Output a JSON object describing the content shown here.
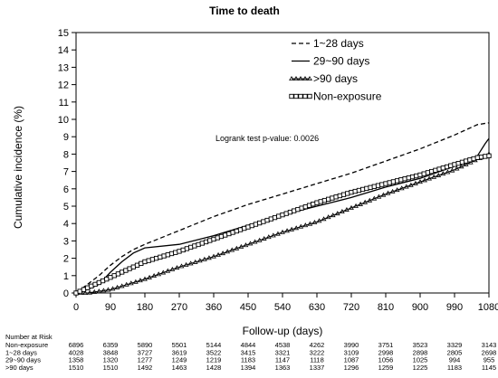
{
  "chart_data": {
    "type": "line",
    "title": "Time to death",
    "xlabel": "Follow-up  (days)",
    "ylabel": "Cumulative incidence (%)",
    "xlim": [
      0,
      1080
    ],
    "ylim": [
      0,
      15
    ],
    "x_ticks": [
      "0",
      "90",
      "180",
      "270",
      "360",
      "450",
      "540",
      "630",
      "720",
      "810",
      "900",
      "990",
      "1080"
    ],
    "y_ticks": [
      "0",
      "1",
      "2",
      "3",
      "4",
      "5",
      "6",
      "7",
      "8",
      "9",
      "10",
      "11",
      "12",
      "13",
      "14",
      "15"
    ],
    "grid": false,
    "legend_position": "top-right",
    "annotation": "Logrank test p-value: 0.0026",
    "series": [
      {
        "name": "1~28 days",
        "style": "dashed",
        "x": [
          0,
          30,
          60,
          90,
          120,
          150,
          180,
          270,
          360,
          450,
          540,
          630,
          720,
          810,
          900,
          990,
          1050,
          1080
        ],
        "y": [
          0,
          0.5,
          1.0,
          1.6,
          2.1,
          2.5,
          2.8,
          3.6,
          4.4,
          5.1,
          5.7,
          6.3,
          6.9,
          7.6,
          8.3,
          9.1,
          9.7,
          9.8
        ]
      },
      {
        "name": "29~90 days",
        "style": "solid",
        "x": [
          0,
          30,
          60,
          90,
          120,
          150,
          180,
          270,
          360,
          450,
          540,
          630,
          720,
          810,
          900,
          990,
          1050,
          1070,
          1080
        ],
        "y": [
          0,
          0.2,
          0.5,
          1.2,
          1.8,
          2.3,
          2.6,
          2.8,
          3.3,
          3.9,
          4.5,
          5.0,
          5.5,
          6.1,
          6.6,
          7.3,
          7.9,
          8.6,
          8.9
        ]
      },
      {
        "name": ">90 days",
        "style": "triangle",
        "x": [
          0,
          30,
          60,
          90,
          120,
          150,
          180,
          270,
          360,
          450,
          540,
          630,
          720,
          810,
          900,
          990,
          1050,
          1080
        ],
        "y": [
          0,
          0,
          0.1,
          0.2,
          0.4,
          0.6,
          0.8,
          1.5,
          2.1,
          2.8,
          3.5,
          4.1,
          4.9,
          5.7,
          6.4,
          7.1,
          7.7,
          8.0
        ]
      },
      {
        "name": "Non-exposure",
        "style": "square",
        "x": [
          0,
          30,
          60,
          90,
          120,
          150,
          180,
          270,
          360,
          450,
          540,
          630,
          720,
          810,
          900,
          990,
          1050,
          1080
        ],
        "y": [
          0,
          0.3,
          0.6,
          0.9,
          1.2,
          1.5,
          1.8,
          2.4,
          3.1,
          3.8,
          4.5,
          5.2,
          5.8,
          6.3,
          6.8,
          7.4,
          7.8,
          7.9
        ]
      }
    ]
  },
  "risk_table": {
    "title": "Number at Risk",
    "rows": [
      {
        "label": "Non-exposure",
        "values": [
          "6896",
          "6359",
          "5890",
          "5501",
          "5144",
          "4844",
          "4538",
          "4262",
          "3990",
          "3751",
          "3523",
          "3329",
          "3143"
        ]
      },
      {
        "label": "1~28 days",
        "values": [
          "4028",
          "3848",
          "3727",
          "3619",
          "3522",
          "3415",
          "3321",
          "3222",
          "3109",
          "2998",
          "2898",
          "2805",
          "2698"
        ]
      },
      {
        "label": "29~90 days",
        "values": [
          "1358",
          "1320",
          "1277",
          "1249",
          "1219",
          "1183",
          "1147",
          "1118",
          "1087",
          "1056",
          "1025",
          "994",
          "955"
        ]
      },
      {
        "label": ">90 days",
        "values": [
          "1510",
          "1510",
          "1492",
          "1463",
          "1428",
          "1394",
          "1363",
          "1337",
          "1296",
          "1259",
          "1225",
          "1183",
          "1145"
        ]
      }
    ]
  }
}
